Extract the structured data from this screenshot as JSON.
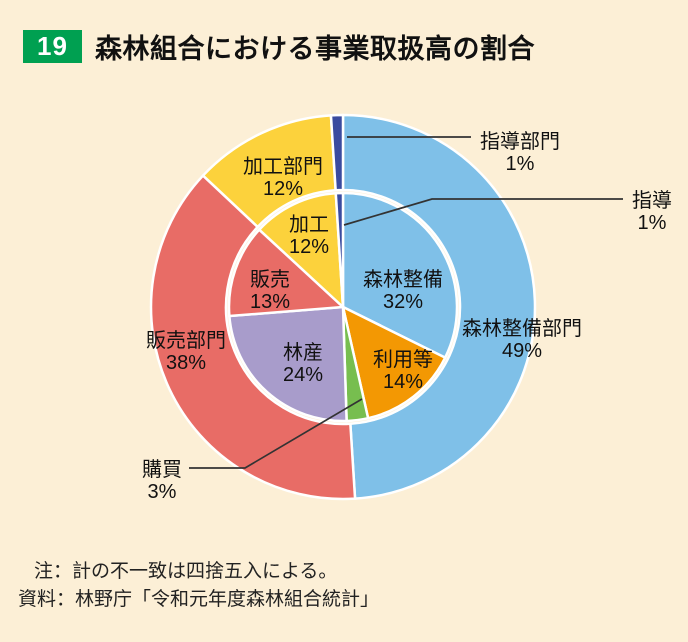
{
  "header": {
    "badge": "19",
    "title": "森林組合における事業取扱高の割合",
    "badge_color": "#00A051"
  },
  "chart_data": {
    "type": "pie",
    "subtype": "nested_donut",
    "title": "森林組合における事業取扱高の割合",
    "unit": "%",
    "start_angle_deg": 0,
    "direction": "clockwise",
    "background_color": "#FCEFD6",
    "outer_ring": {
      "name": "部門別",
      "items": [
        {
          "label": "森林整備部門",
          "value": 49,
          "color": "#7FC0E8"
        },
        {
          "label": "販売部門",
          "value": 38,
          "color": "#E86C66"
        },
        {
          "label": "加工部門",
          "value": 12,
          "color": "#FCD23C"
        },
        {
          "label": "指導部門",
          "value": 1,
          "color": "#3A4B9F"
        }
      ]
    },
    "inner_ring": {
      "name": "事業別",
      "items": [
        {
          "label": "森林整備",
          "value": 32,
          "color": "#7FC0E8"
        },
        {
          "label": "利用等",
          "value": 14,
          "color": "#F39803"
        },
        {
          "label": "購買",
          "value": 3,
          "color": "#77BE4F"
        },
        {
          "label": "林産",
          "value": 24,
          "color": "#A89CCB"
        },
        {
          "label": "販売",
          "value": 13,
          "color": "#E86C66"
        },
        {
          "label": "加工",
          "value": 12,
          "color": "#FCD23C"
        },
        {
          "label": "指導",
          "value": 1,
          "color": "#3A4B9F"
        }
      ]
    }
  },
  "notes": {
    "note": "注：計の不一致は四捨五入による。",
    "source": "資料：林野庁「令和元年度森林組合統計」"
  }
}
